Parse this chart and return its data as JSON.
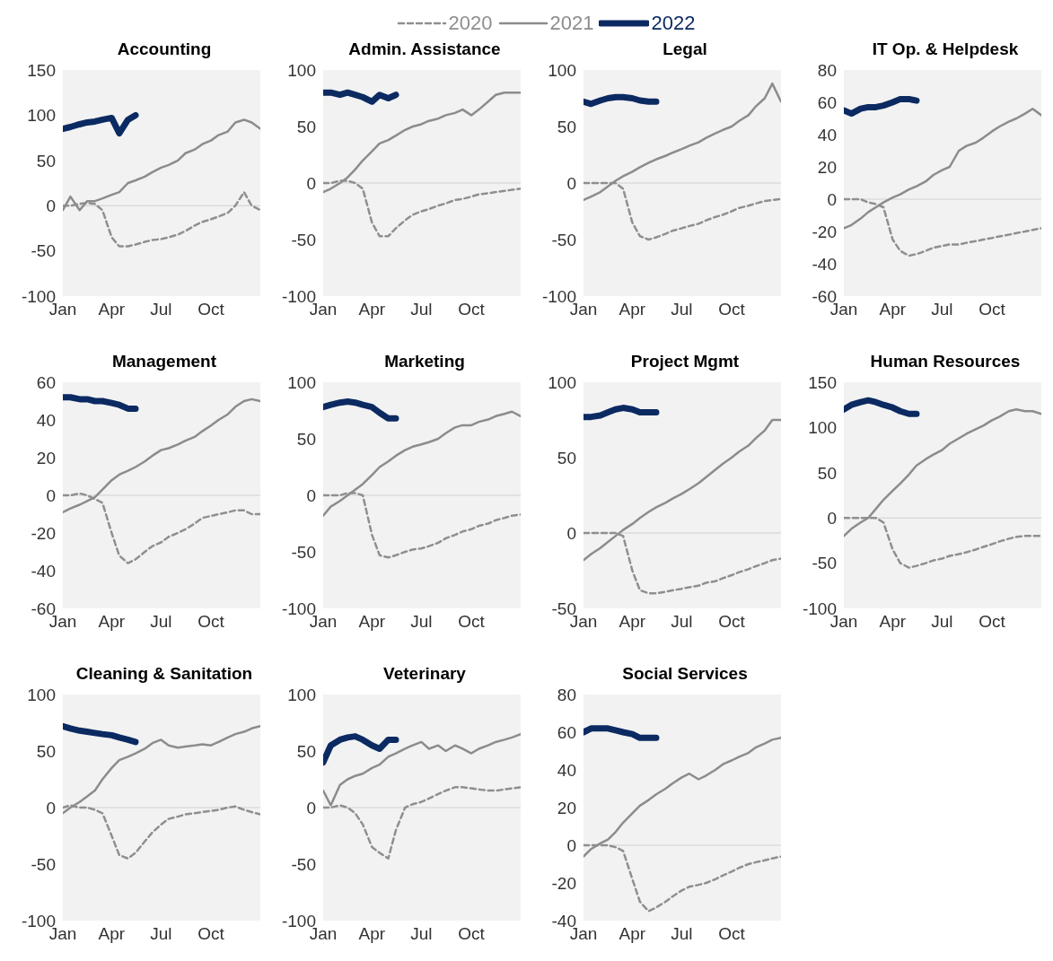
{
  "chart_data": [
    {
      "type": "line",
      "title": "Accounting",
      "legend": "top",
      "ylim": [
        -100,
        150
      ],
      "yticks": [
        -100,
        -50,
        0,
        50,
        100,
        150
      ],
      "xlim": [
        "--01-01",
        "--12-31"
      ],
      "xticks": [
        {
          "value": "--01-01",
          "label": "Jan"
        },
        {
          "value": "--04-01",
          "label": "Apr"
        },
        {
          "value": "--07-01",
          "label": "Jul"
        },
        {
          "value": "--10-01",
          "label": "Oct"
        }
      ],
      "ref_lines": [
        {
          "axis": "y",
          "value": 0,
          "color": "#d0d0d0"
        }
      ],
      "x": [
        "--01-01",
        "--01-15",
        "--02-01",
        "--02-15",
        "--03-01",
        "--03-15",
        "--04-01",
        "--04-15",
        "--05-01",
        "--05-15",
        "--06-01",
        "--06-15",
        "--07-01",
        "--07-15",
        "--08-01",
        "--08-15",
        "--09-01",
        "--09-15",
        "--10-01",
        "--10-15",
        "--11-01",
        "--11-15",
        "--12-01",
        "--12-15",
        "--12-31"
      ],
      "series": [
        {
          "name": "2020",
          "color": "#8f8f8f",
          "line_style": "dashed",
          "values": [
            0,
            0,
            2,
            3,
            2,
            -5,
            -35,
            -45,
            -45,
            -43,
            -40,
            -38,
            -37,
            -35,
            -32,
            -28,
            -22,
            -18,
            -15,
            -12,
            -8,
            0,
            15,
            0,
            -5
          ]
        },
        {
          "name": "2021",
          "color": "#8c8c8c",
          "line_style": "solid",
          "values": [
            -5,
            10,
            -5,
            5,
            5,
            8,
            12,
            15,
            25,
            28,
            32,
            37,
            42,
            45,
            50,
            58,
            62,
            68,
            72,
            78,
            82,
            92,
            95,
            92,
            85
          ]
        },
        {
          "name": "2022",
          "color": "#0c2a62",
          "line_style": "solid",
          "x": [
            "--01-01",
            "--01-15",
            "--02-01",
            "--02-15",
            "--03-01",
            "--03-15",
            "--04-01",
            "--04-15",
            "--05-01",
            "--05-15"
          ],
          "values": [
            85,
            87,
            90,
            92,
            93,
            95,
            97,
            80,
            95,
            100
          ]
        }
      ]
    },
    {
      "type": "line",
      "title": "Admin. Assistance",
      "ylim": [
        -100,
        100
      ],
      "yticks": [
        -100,
        -50,
        0,
        50,
        100
      ],
      "xlim": [
        "--01-01",
        "--12-31"
      ],
      "xticks": [
        {
          "value": "--01-01",
          "label": "Jan"
        },
        {
          "value": "--04-01",
          "label": "Apr"
        },
        {
          "value": "--07-01",
          "label": "Jul"
        },
        {
          "value": "--10-01",
          "label": "Oct"
        }
      ],
      "ref_lines": [
        {
          "axis": "y",
          "value": 0,
          "color": "#d0d0d0"
        }
      ],
      "x": [
        "--01-01",
        "--01-15",
        "--02-01",
        "--02-15",
        "--03-01",
        "--03-15",
        "--04-01",
        "--04-15",
        "--05-01",
        "--05-15",
        "--06-01",
        "--06-15",
        "--07-01",
        "--07-15",
        "--08-01",
        "--08-15",
        "--09-01",
        "--09-15",
        "--10-01",
        "--10-15",
        "--11-01",
        "--11-15",
        "--12-01",
        "--12-15",
        "--12-31"
      ],
      "series": [
        {
          "color": "#8f8f8f",
          "line_style": "dashed",
          "values": [
            0,
            0,
            2,
            2,
            0,
            -5,
            -35,
            -47,
            -47,
            -40,
            -33,
            -28,
            -25,
            -23,
            -20,
            -18,
            -15,
            -14,
            -12,
            -10,
            -9,
            -8,
            -7,
            -6,
            -5
          ]
        },
        {
          "color": "#8c8c8c",
          "line_style": "solid",
          "values": [
            -8,
            -5,
            0,
            5,
            12,
            20,
            28,
            35,
            38,
            42,
            47,
            50,
            52,
            55,
            57,
            60,
            62,
            65,
            60,
            65,
            72,
            78,
            80,
            80,
            80
          ]
        },
        {
          "color": "#0c2a62",
          "line_style": "solid",
          "x": [
            "--01-01",
            "--01-15",
            "--02-01",
            "--02-15",
            "--03-01",
            "--03-15",
            "--04-01",
            "--04-15",
            "--05-01",
            "--05-15"
          ],
          "values": [
            80,
            80,
            78,
            80,
            78,
            76,
            72,
            78,
            75,
            78
          ]
        }
      ]
    },
    {
      "type": "line",
      "title": "Legal",
      "ylim": [
        -100,
        100
      ],
      "yticks": [
        -100,
        -50,
        0,
        50,
        100
      ],
      "xlim": [
        "--01-01",
        "--12-31"
      ],
      "xticks": [
        {
          "value": "--01-01",
          "label": "Jan"
        },
        {
          "value": "--04-01",
          "label": "Apr"
        },
        {
          "value": "--07-01",
          "label": "Jul"
        },
        {
          "value": "--10-01",
          "label": "Oct"
        }
      ],
      "ref_lines": [
        {
          "axis": "y",
          "value": 0,
          "color": "#d0d0d0"
        }
      ],
      "x": [
        "--01-01",
        "--01-15",
        "--02-01",
        "--02-15",
        "--03-01",
        "--03-15",
        "--04-01",
        "--04-15",
        "--05-01",
        "--05-15",
        "--06-01",
        "--06-15",
        "--07-01",
        "--07-15",
        "--08-01",
        "--08-15",
        "--09-01",
        "--09-15",
        "--10-01",
        "--10-15",
        "--11-01",
        "--11-15",
        "--12-01",
        "--12-15",
        "--12-31"
      ],
      "series": [
        {
          "color": "#8f8f8f",
          "line_style": "dashed",
          "values": [
            0,
            0,
            0,
            0,
            0,
            -5,
            -35,
            -47,
            -50,
            -48,
            -45,
            -42,
            -40,
            -38,
            -36,
            -33,
            -30,
            -28,
            -25,
            -22,
            -20,
            -18,
            -16,
            -15,
            -14
          ]
        },
        {
          "color": "#8c8c8c",
          "line_style": "solid",
          "values": [
            -15,
            -12,
            -8,
            -3,
            2,
            6,
            10,
            14,
            18,
            21,
            24,
            27,
            30,
            33,
            36,
            40,
            44,
            47,
            50,
            55,
            60,
            68,
            75,
            88,
            72
          ]
        },
        {
          "color": "#0c2a62",
          "line_style": "solid",
          "x": [
            "--01-01",
            "--01-15",
            "--02-01",
            "--02-15",
            "--03-01",
            "--03-15",
            "--04-01",
            "--04-15",
            "--05-01",
            "--05-15"
          ],
          "values": [
            72,
            70,
            73,
            75,
            76,
            76,
            75,
            73,
            72,
            72
          ]
        }
      ]
    },
    {
      "type": "line",
      "title": "IT Op. & Helpdesk",
      "ylim": [
        -60,
        80
      ],
      "yticks": [
        -60,
        -40,
        -20,
        0,
        20,
        40,
        60,
        80
      ],
      "xlim": [
        "--01-01",
        "--12-31"
      ],
      "xticks": [
        {
          "value": "--01-01",
          "label": "Jan"
        },
        {
          "value": "--04-01",
          "label": "Apr"
        },
        {
          "value": "--07-01",
          "label": "Jul"
        },
        {
          "value": "--10-01",
          "label": "Oct"
        }
      ],
      "ref_lines": [
        {
          "axis": "y",
          "value": 0,
          "color": "#d0d0d0"
        }
      ],
      "x": [
        "--01-01",
        "--01-15",
        "--02-01",
        "--02-15",
        "--03-01",
        "--03-15",
        "--04-01",
        "--04-15",
        "--05-01",
        "--05-15",
        "--06-01",
        "--06-15",
        "--07-01",
        "--07-15",
        "--08-01",
        "--08-15",
        "--09-01",
        "--09-15",
        "--10-01",
        "--10-15",
        "--11-01",
        "--11-15",
        "--12-01",
        "--12-15",
        "--12-31"
      ],
      "series": [
        {
          "color": "#8f8f8f",
          "line_style": "dashed",
          "values": [
            0,
            0,
            0,
            -2,
            -3,
            -5,
            -25,
            -32,
            -35,
            -34,
            -32,
            -30,
            -29,
            -28,
            -28,
            -27,
            -26,
            -25,
            -24,
            -23,
            -22,
            -21,
            -20,
            -19,
            -18
          ]
        },
        {
          "color": "#8c8c8c",
          "line_style": "solid",
          "values": [
            -18,
            -16,
            -12,
            -8,
            -5,
            -2,
            1,
            3,
            6,
            8,
            11,
            15,
            18,
            20,
            30,
            33,
            35,
            38,
            42,
            45,
            48,
            50,
            53,
            56,
            52
          ]
        },
        {
          "color": "#0c2a62",
          "line_style": "solid",
          "x": [
            "--01-01",
            "--01-15",
            "--02-01",
            "--02-15",
            "--03-01",
            "--03-15",
            "--04-01",
            "--04-15",
            "--05-01",
            "--05-15"
          ],
          "values": [
            55,
            53,
            56,
            57,
            57,
            58,
            60,
            62,
            62,
            61
          ]
        }
      ]
    },
    {
      "type": "line",
      "title": "Management",
      "ylim": [
        -60,
        60
      ],
      "yticks": [
        -60,
        -40,
        -20,
        0,
        20,
        40,
        60
      ],
      "xlim": [
        "--01-01",
        "--12-31"
      ],
      "xticks": [
        {
          "value": "--01-01",
          "label": "Jan"
        },
        {
          "value": "--04-01",
          "label": "Apr"
        },
        {
          "value": "--07-01",
          "label": "Jul"
        },
        {
          "value": "--10-01",
          "label": "Oct"
        }
      ],
      "ref_lines": [
        {
          "axis": "y",
          "value": 0,
          "color": "#d0d0d0"
        }
      ],
      "x": [
        "--01-01",
        "--01-15",
        "--02-01",
        "--02-15",
        "--03-01",
        "--03-15",
        "--04-01",
        "--04-15",
        "--05-01",
        "--05-15",
        "--06-01",
        "--06-15",
        "--07-01",
        "--07-15",
        "--08-01",
        "--08-15",
        "--09-01",
        "--09-15",
        "--10-01",
        "--10-15",
        "--11-01",
        "--11-15",
        "--12-01",
        "--12-15",
        "--12-31"
      ],
      "series": [
        {
          "color": "#8f8f8f",
          "line_style": "dashed",
          "values": [
            0,
            0,
            1,
            0,
            -2,
            -4,
            -20,
            -32,
            -36,
            -34,
            -30,
            -27,
            -25,
            -22,
            -20,
            -18,
            -15,
            -12,
            -11,
            -10,
            -9,
            -8,
            -8,
            -10,
            -10
          ]
        },
        {
          "color": "#8c8c8c",
          "line_style": "solid",
          "values": [
            -9,
            -7,
            -5,
            -3,
            -1,
            3,
            8,
            11,
            13,
            15,
            18,
            21,
            24,
            25,
            27,
            29,
            31,
            34,
            37,
            40,
            43,
            47,
            50,
            51,
            50
          ]
        },
        {
          "color": "#0c2a62",
          "line_style": "solid",
          "x": [
            "--01-01",
            "--01-15",
            "--02-01",
            "--02-15",
            "--03-01",
            "--03-15",
            "--04-01",
            "--04-15",
            "--05-01",
            "--05-15"
          ],
          "values": [
            52,
            52,
            51,
            51,
            50,
            50,
            49,
            48,
            46,
            46
          ]
        }
      ]
    },
    {
      "type": "line",
      "title": "Marketing",
      "ylim": [
        -100,
        100
      ],
      "yticks": [
        -100,
        -50,
        0,
        50,
        100
      ],
      "xlim": [
        "--01-01",
        "--12-31"
      ],
      "xticks": [
        {
          "value": "--01-01",
          "label": "Jan"
        },
        {
          "value": "--04-01",
          "label": "Apr"
        },
        {
          "value": "--07-01",
          "label": "Jul"
        },
        {
          "value": "--10-01",
          "label": "Oct"
        }
      ],
      "ref_lines": [
        {
          "axis": "y",
          "value": 0,
          "color": "#d0d0d0"
        }
      ],
      "x": [
        "--01-01",
        "--01-15",
        "--02-01",
        "--02-15",
        "--03-01",
        "--03-15",
        "--04-01",
        "--04-15",
        "--05-01",
        "--05-15",
        "--06-01",
        "--06-15",
        "--07-01",
        "--07-15",
        "--08-01",
        "--08-15",
        "--09-01",
        "--09-15",
        "--10-01",
        "--10-15",
        "--11-01",
        "--11-15",
        "--12-01",
        "--12-15",
        "--12-31"
      ],
      "series": [
        {
          "color": "#8f8f8f",
          "line_style": "dashed",
          "values": [
            0,
            0,
            0,
            2,
            2,
            0,
            -35,
            -53,
            -55,
            -53,
            -50,
            -48,
            -47,
            -45,
            -42,
            -38,
            -35,
            -32,
            -30,
            -27,
            -25,
            -22,
            -20,
            -18,
            -17
          ]
        },
        {
          "color": "#8c8c8c",
          "line_style": "solid",
          "values": [
            -18,
            -10,
            -5,
            0,
            5,
            10,
            18,
            25,
            30,
            35,
            40,
            43,
            45,
            47,
            50,
            55,
            60,
            62,
            62,
            65,
            67,
            70,
            72,
            74,
            70
          ]
        },
        {
          "color": "#0c2a62",
          "line_style": "solid",
          "x": [
            "--01-01",
            "--01-15",
            "--02-01",
            "--02-15",
            "--03-01",
            "--03-15",
            "--04-01",
            "--04-15",
            "--05-01",
            "--05-15"
          ],
          "values": [
            78,
            80,
            82,
            83,
            82,
            80,
            78,
            73,
            68,
            68
          ]
        }
      ]
    },
    {
      "type": "line",
      "title": "Project Mgmt",
      "ylim": [
        -50,
        100
      ],
      "yticks": [
        -50,
        0,
        50,
        100
      ],
      "xlim": [
        "--01-01",
        "--12-31"
      ],
      "xticks": [
        {
          "value": "--01-01",
          "label": "Jan"
        },
        {
          "value": "--04-01",
          "label": "Apr"
        },
        {
          "value": "--07-01",
          "label": "Jul"
        },
        {
          "value": "--10-01",
          "label": "Oct"
        }
      ],
      "ref_lines": [
        {
          "axis": "y",
          "value": 0,
          "color": "#d0d0d0"
        }
      ],
      "x": [
        "--01-01",
        "--01-15",
        "--02-01",
        "--02-15",
        "--03-01",
        "--03-15",
        "--04-01",
        "--04-15",
        "--05-01",
        "--05-15",
        "--06-01",
        "--06-15",
        "--07-01",
        "--07-15",
        "--08-01",
        "--08-15",
        "--09-01",
        "--09-15",
        "--10-01",
        "--10-15",
        "--11-01",
        "--11-15",
        "--12-01",
        "--12-15",
        "--12-31"
      ],
      "series": [
        {
          "color": "#8f8f8f",
          "line_style": "dashed",
          "values": [
            0,
            0,
            0,
            0,
            0,
            -2,
            -25,
            -38,
            -40,
            -40,
            -39,
            -38,
            -37,
            -36,
            -35,
            -33,
            -32,
            -30,
            -28,
            -26,
            -24,
            -22,
            -20,
            -18,
            -17
          ]
        },
        {
          "color": "#8c8c8c",
          "line_style": "solid",
          "values": [
            -18,
            -14,
            -10,
            -6,
            -2,
            2,
            6,
            10,
            14,
            17,
            20,
            23,
            26,
            29,
            33,
            37,
            42,
            46,
            50,
            54,
            58,
            63,
            68,
            75,
            75
          ]
        },
        {
          "color": "#0c2a62",
          "line_style": "solid",
          "x": [
            "--01-01",
            "--01-15",
            "--02-01",
            "--02-15",
            "--03-01",
            "--03-15",
            "--04-01",
            "--04-15",
            "--05-01",
            "--05-15"
          ],
          "values": [
            77,
            77,
            78,
            80,
            82,
            83,
            82,
            80,
            80,
            80
          ]
        }
      ]
    },
    {
      "type": "line",
      "title": "Human Resources",
      "ylim": [
        -100,
        150
      ],
      "yticks": [
        -100,
        -50,
        0,
        50,
        100,
        150
      ],
      "xlim": [
        "--01-01",
        "--12-31"
      ],
      "xticks": [
        {
          "value": "--01-01",
          "label": "Jan"
        },
        {
          "value": "--04-01",
          "label": "Apr"
        },
        {
          "value": "--07-01",
          "label": "Jul"
        },
        {
          "value": "--10-01",
          "label": "Oct"
        }
      ],
      "ref_lines": [
        {
          "axis": "y",
          "value": 0,
          "color": "#d0d0d0"
        }
      ],
      "x": [
        "--01-01",
        "--01-15",
        "--02-01",
        "--02-15",
        "--03-01",
        "--03-15",
        "--04-01",
        "--04-15",
        "--05-01",
        "--05-15",
        "--06-01",
        "--06-15",
        "--07-01",
        "--07-15",
        "--08-01",
        "--08-15",
        "--09-01",
        "--09-15",
        "--10-01",
        "--10-15",
        "--11-01",
        "--11-15",
        "--12-01",
        "--12-15",
        "--12-31"
      ],
      "series": [
        {
          "color": "#8f8f8f",
          "line_style": "dashed",
          "values": [
            0,
            0,
            0,
            0,
            0,
            -5,
            -35,
            -50,
            -55,
            -53,
            -50,
            -47,
            -45,
            -42,
            -40,
            -38,
            -35,
            -32,
            -29,
            -26,
            -23,
            -21,
            -20,
            -20,
            -20
          ]
        },
        {
          "color": "#8c8c8c",
          "line_style": "solid",
          "values": [
            -20,
            -12,
            -5,
            0,
            10,
            20,
            30,
            38,
            48,
            58,
            65,
            70,
            75,
            82,
            88,
            93,
            98,
            102,
            108,
            112,
            118,
            120,
            118,
            118,
            115
          ]
        },
        {
          "color": "#0c2a62",
          "line_style": "solid",
          "x": [
            "--01-01",
            "--01-15",
            "--02-01",
            "--02-15",
            "--03-01",
            "--03-15",
            "--04-01",
            "--04-15",
            "--05-01",
            "--05-15"
          ],
          "values": [
            120,
            125,
            128,
            130,
            128,
            125,
            122,
            118,
            115,
            115
          ]
        }
      ]
    },
    {
      "type": "line",
      "title": "Cleaning & Sanitation",
      "ylim": [
        -100,
        100
      ],
      "yticks": [
        -100,
        -50,
        0,
        50,
        100
      ],
      "xlim": [
        "--01-01",
        "--12-31"
      ],
      "xticks": [
        {
          "value": "--01-01",
          "label": "Jan"
        },
        {
          "value": "--04-01",
          "label": "Apr"
        },
        {
          "value": "--07-01",
          "label": "Jul"
        },
        {
          "value": "--10-01",
          "label": "Oct"
        }
      ],
      "ref_lines": [
        {
          "axis": "y",
          "value": 0,
          "color": "#d0d0d0"
        }
      ],
      "x": [
        "--01-01",
        "--01-15",
        "--02-01",
        "--02-15",
        "--03-01",
        "--03-15",
        "--04-01",
        "--04-15",
        "--05-01",
        "--05-15",
        "--06-01",
        "--06-15",
        "--07-01",
        "--07-15",
        "--08-01",
        "--08-15",
        "--09-01",
        "--09-15",
        "--10-01",
        "--10-15",
        "--11-01",
        "--11-15",
        "--12-01",
        "--12-15",
        "--12-31"
      ],
      "series": [
        {
          "color": "#8f8f8f",
          "line_style": "dashed",
          "values": [
            0,
            2,
            0,
            0,
            -2,
            -5,
            -25,
            -42,
            -45,
            -40,
            -30,
            -22,
            -15,
            -10,
            -8,
            -6,
            -5,
            -4,
            -3,
            -2,
            0,
            1,
            -2,
            -4,
            -6
          ]
        },
        {
          "color": "#8c8c8c",
          "line_style": "solid",
          "values": [
            -5,
            0,
            5,
            10,
            15,
            25,
            35,
            42,
            45,
            48,
            52,
            57,
            60,
            55,
            53,
            54,
            55,
            56,
            55,
            58,
            62,
            65,
            67,
            70,
            72
          ]
        },
        {
          "color": "#0c2a62",
          "line_style": "solid",
          "x": [
            "--01-01",
            "--01-15",
            "--02-01",
            "--02-15",
            "--03-01",
            "--03-15",
            "--04-01",
            "--04-15",
            "--05-01",
            "--05-15"
          ],
          "values": [
            72,
            70,
            68,
            67,
            66,
            65,
            64,
            62,
            60,
            58
          ]
        }
      ]
    },
    {
      "type": "line",
      "title": "Veterinary",
      "ylim": [
        -100,
        100
      ],
      "yticks": [
        -100,
        -50,
        0,
        50,
        100
      ],
      "xlim": [
        "--01-01",
        "--12-31"
      ],
      "xticks": [
        {
          "value": "--01-01",
          "label": "Jan"
        },
        {
          "value": "--04-01",
          "label": "Apr"
        },
        {
          "value": "--07-01",
          "label": "Jul"
        },
        {
          "value": "--10-01",
          "label": "Oct"
        }
      ],
      "ref_lines": [
        {
          "axis": "y",
          "value": 0,
          "color": "#d0d0d0"
        }
      ],
      "x": [
        "--01-01",
        "--01-15",
        "--02-01",
        "--02-15",
        "--03-01",
        "--03-15",
        "--04-01",
        "--04-15",
        "--05-01",
        "--05-15",
        "--06-01",
        "--06-15",
        "--07-01",
        "--07-15",
        "--08-01",
        "--08-15",
        "--09-01",
        "--09-15",
        "--10-01",
        "--10-15",
        "--11-01",
        "--11-15",
        "--12-01",
        "--12-15",
        "--12-31"
      ],
      "series": [
        {
          "color": "#8f8f8f",
          "line_style": "dashed",
          "values": [
            0,
            0,
            2,
            0,
            -5,
            -15,
            -35,
            -40,
            -45,
            -20,
            0,
            3,
            5,
            8,
            12,
            15,
            18,
            18,
            17,
            16,
            15,
            15,
            16,
            17,
            18
          ]
        },
        {
          "color": "#8c8c8c",
          "line_style": "solid",
          "values": [
            15,
            2,
            20,
            25,
            28,
            30,
            35,
            38,
            45,
            48,
            52,
            55,
            58,
            52,
            55,
            50,
            55,
            52,
            48,
            52,
            55,
            58,
            60,
            62,
            65
          ]
        },
        {
          "color": "#0c2a62",
          "line_style": "solid",
          "x": [
            "--01-01",
            "--01-15",
            "--02-01",
            "--02-15",
            "--03-01",
            "--03-15",
            "--04-01",
            "--04-15",
            "--05-01",
            "--05-15"
          ],
          "values": [
            40,
            55,
            60,
            62,
            63,
            60,
            55,
            52,
            60,
            60
          ]
        }
      ]
    },
    {
      "type": "line",
      "title": "Social Services",
      "ylim": [
        -40,
        80
      ],
      "yticks": [
        -40,
        -20,
        0,
        20,
        40,
        60,
        80
      ],
      "xlim": [
        "--01-01",
        "--12-31"
      ],
      "xticks": [
        {
          "value": "--01-01",
          "label": "Jan"
        },
        {
          "value": "--04-01",
          "label": "Apr"
        },
        {
          "value": "--07-01",
          "label": "Jul"
        },
        {
          "value": "--10-01",
          "label": "Oct"
        }
      ],
      "ref_lines": [
        {
          "axis": "y",
          "value": 0,
          "color": "#d0d0d0"
        }
      ],
      "x": [
        "--01-01",
        "--01-15",
        "--02-01",
        "--02-15",
        "--03-01",
        "--03-15",
        "--04-01",
        "--04-15",
        "--05-01",
        "--05-15",
        "--06-01",
        "--06-15",
        "--07-01",
        "--07-15",
        "--08-01",
        "--08-15",
        "--09-01",
        "--09-15",
        "--10-01",
        "--10-15",
        "--11-01",
        "--11-15",
        "--12-01",
        "--12-15",
        "--12-31"
      ],
      "series": [
        {
          "color": "#8f8f8f",
          "line_style": "dashed",
          "values": [
            0,
            0,
            0,
            0,
            -1,
            -3,
            -18,
            -30,
            -35,
            -33,
            -30,
            -27,
            -24,
            -22,
            -21,
            -20,
            -18,
            -16,
            -14,
            -12,
            -10,
            -9,
            -8,
            -7,
            -6
          ]
        },
        {
          "color": "#8c8c8c",
          "line_style": "solid",
          "values": [
            -6,
            -2,
            1,
            3,
            7,
            12,
            17,
            21,
            24,
            27,
            30,
            33,
            36,
            38,
            35,
            37,
            40,
            43,
            45,
            47,
            49,
            52,
            54,
            56,
            57
          ]
        },
        {
          "color": "#0c2a62",
          "line_style": "solid",
          "x": [
            "--01-01",
            "--01-15",
            "--02-01",
            "--02-15",
            "--03-01",
            "--03-15",
            "--04-01",
            "--04-15",
            "--05-01",
            "--05-15"
          ],
          "values": [
            60,
            62,
            62,
            62,
            61,
            60,
            59,
            57,
            57,
            57
          ]
        }
      ]
    }
  ]
}
